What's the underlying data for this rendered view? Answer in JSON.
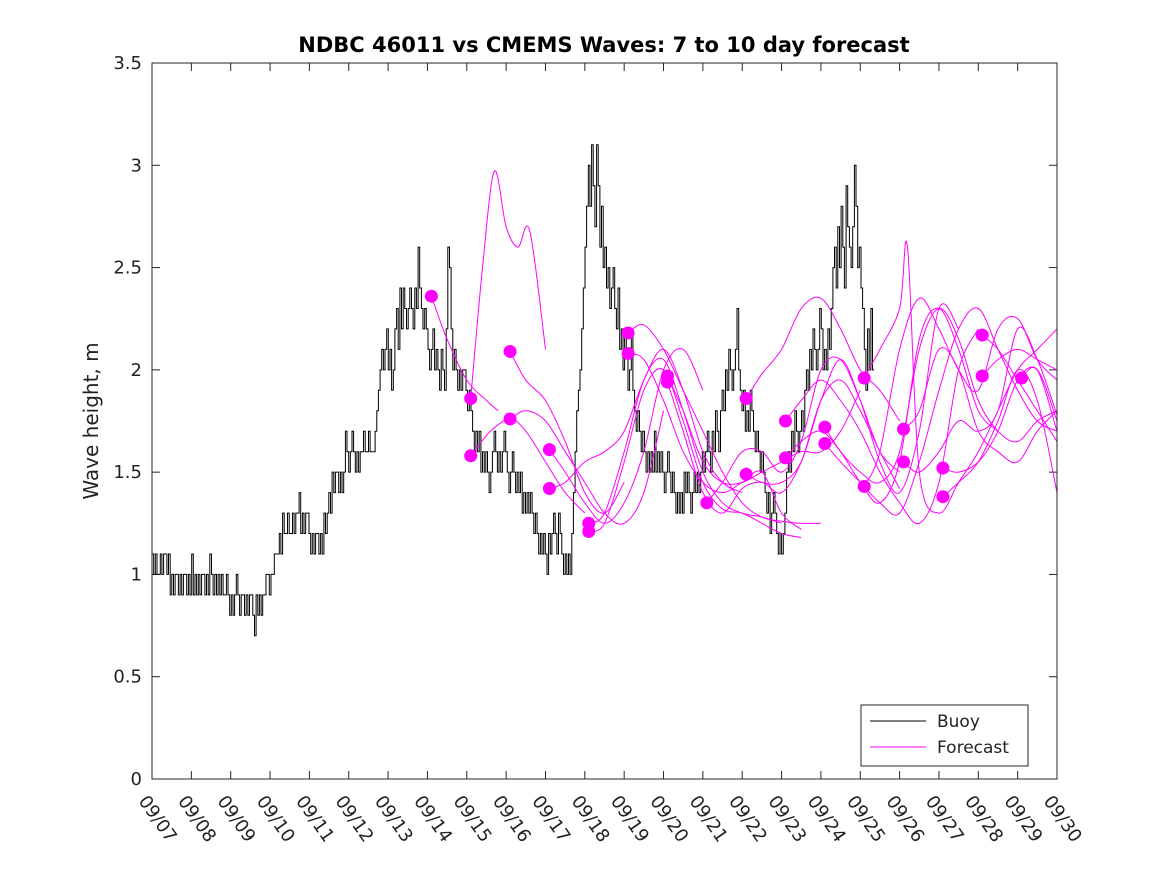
{
  "chart_data": {
    "type": "line",
    "title": "NDBC 46011 vs CMEMS Waves: 7 to 10 day forecast",
    "xlabel": "",
    "ylabel": "Wave height, m",
    "ylim": [
      0,
      3.5
    ],
    "xlim": [
      0,
      23
    ],
    "x_tick_labels": [
      "09/07",
      "09/08",
      "09/09",
      "09/10",
      "09/11",
      "09/12",
      "09/13",
      "09/14",
      "09/15",
      "09/16",
      "09/17",
      "09/18",
      "09/19",
      "09/20",
      "09/21",
      "09/22",
      "09/23",
      "09/24",
      "09/25",
      "09/26",
      "09/27",
      "09/28",
      "09/29",
      "09/30"
    ],
    "y_ticks": [
      0,
      0.5,
      1,
      1.5,
      2,
      2.5,
      3,
      3.5
    ],
    "y_tick_labels": [
      "0",
      "0.5",
      "1",
      "1.5",
      "2",
      "2.5",
      "3",
      "3.5"
    ],
    "legend": {
      "placement": "bottom-right",
      "entries": [
        "Buoy",
        "Forecast"
      ]
    },
    "colors": {
      "buoy": "#000000",
      "forecast": "#ff00ff"
    },
    "buoy_series": {
      "name": "Buoy",
      "x_start_day": 0,
      "step_days": 0.042,
      "values": [
        1.1,
        1.0,
        1.1,
        1.0,
        1.0,
        1.1,
        1.0,
        1.1,
        1.1,
        1.0,
        1.1,
        0.9,
        1.0,
        0.9,
        1.0,
        1.0,
        0.9,
        1.0,
        0.9,
        1.0,
        1.0,
        0.9,
        1.0,
        0.9,
        1.1,
        0.9,
        1.0,
        0.9,
        1.0,
        0.9,
        1.0,
        1.0,
        0.9,
        1.0,
        0.9,
        1.1,
        1.0,
        0.9,
        1.0,
        0.9,
        1.0,
        0.9,
        1.0,
        0.9,
        0.9,
        1.0,
        0.9,
        0.8,
        0.9,
        0.8,
        0.9,
        1.0,
        0.9,
        0.8,
        0.9,
        0.9,
        0.8,
        0.9,
        0.8,
        0.9,
        0.9,
        0.8,
        0.7,
        0.9,
        0.8,
        0.9,
        0.8,
        0.9,
        0.9,
        1.0,
        1.0,
        0.9,
        1.0,
        1.0,
        1.1,
        1.1,
        1.1,
        1.2,
        1.1,
        1.3,
        1.2,
        1.2,
        1.3,
        1.2,
        1.2,
        1.3,
        1.2,
        1.3,
        1.3,
        1.4,
        1.2,
        1.3,
        1.2,
        1.3,
        1.3,
        1.2,
        1.1,
        1.2,
        1.1,
        1.2,
        1.2,
        1.1,
        1.2,
        1.1,
        1.3,
        1.2,
        1.3,
        1.4,
        1.3,
        1.5,
        1.4,
        1.5,
        1.5,
        1.4,
        1.5,
        1.4,
        1.5,
        1.7,
        1.6,
        1.5,
        1.6,
        1.7,
        1.6,
        1.5,
        1.6,
        1.5,
        1.6,
        1.6,
        1.7,
        1.6,
        1.6,
        1.7,
        1.6,
        1.6,
        1.6,
        1.7,
        1.8,
        1.9,
        2.0,
        2.1,
        2.0,
        2.1,
        2.2,
        2.0,
        2.1,
        1.9,
        2.0,
        2.2,
        2.3,
        2.1,
        2.4,
        2.2,
        2.4,
        2.3,
        2.2,
        2.3,
        2.4,
        2.3,
        2.2,
        2.4,
        2.3,
        2.6,
        2.4,
        2.3,
        2.2,
        2.3,
        2.2,
        2.1,
        2.0,
        2.1,
        2.2,
        2.0,
        2.1,
        2.0,
        1.9,
        2.1,
        2.0,
        1.9,
        2.2,
        2.6,
        2.5,
        2.2,
        2.0,
        2.1,
        2.0,
        1.9,
        2.0,
        1.9,
        2.0,
        2.0,
        1.9,
        1.8,
        1.9,
        1.8,
        1.7,
        1.6,
        1.7,
        1.6,
        1.7,
        1.5,
        1.6,
        1.5,
        1.6,
        1.5,
        1.4,
        1.5,
        1.6,
        1.7,
        1.6,
        1.5,
        1.6,
        1.5,
        1.6,
        1.7,
        1.6,
        1.5,
        1.4,
        1.5,
        1.6,
        1.5,
        1.4,
        1.5,
        1.4,
        1.5,
        1.3,
        1.4,
        1.3,
        1.4,
        1.3,
        1.4,
        1.3,
        1.2,
        1.3,
        1.2,
        1.1,
        1.2,
        1.1,
        1.2,
        1.1,
        1.0,
        1.2,
        1.1,
        1.2,
        1.3,
        1.2,
        1.1,
        1.3,
        1.2,
        1.1,
        1.0,
        1.1,
        1.0,
        1.1,
        1.0,
        1.2,
        1.4,
        1.6,
        1.8,
        1.9,
        2.0,
        2.2,
        2.4,
        2.6,
        2.8,
        3.0,
        2.8,
        3.1,
        2.9,
        2.7,
        3.1,
        2.9,
        2.6,
        2.8,
        2.5,
        2.6,
        2.4,
        2.5,
        2.3,
        2.4,
        2.5,
        2.3,
        2.2,
        2.4,
        2.1,
        2.2,
        2.0,
        2.2,
        2.1,
        1.9,
        2.0,
        2.2,
        1.9,
        1.8,
        1.7,
        1.8,
        1.7,
        1.6,
        1.7,
        1.6,
        1.5,
        1.6,
        1.5,
        1.6,
        1.5,
        1.7,
        1.5,
        1.6,
        1.5,
        1.6,
        1.5,
        1.4,
        1.5,
        1.6,
        1.5,
        1.4,
        1.5,
        1.4,
        1.3,
        1.4,
        1.3,
        1.4,
        1.3,
        1.5,
        1.4,
        1.5,
        1.4,
        1.3,
        1.4,
        1.5,
        1.4,
        1.5,
        1.4,
        1.5,
        1.6,
        1.5,
        1.6,
        1.7,
        1.6,
        1.5,
        1.7,
        1.6,
        1.8,
        1.7,
        1.6,
        1.8,
        1.9,
        1.8,
        2.0,
        1.9,
        2.1,
        2.0,
        1.9,
        2.0,
        2.1,
        2.3,
        2.0,
        1.9,
        1.8,
        1.9,
        1.7,
        1.8,
        1.7,
        1.9,
        1.8,
        1.7,
        1.6,
        1.7,
        1.6,
        1.5,
        1.6,
        1.5,
        1.4,
        1.3,
        1.4,
        1.2,
        1.3,
        1.4,
        1.3,
        1.2,
        1.1,
        1.2,
        1.1,
        1.2,
        1.3,
        1.5,
        1.6,
        1.5,
        1.7,
        1.6,
        1.8,
        1.7,
        1.6,
        1.7,
        1.8,
        1.7,
        1.9,
        2.0,
        1.9,
        2.1,
        2.0,
        2.2,
        2.1,
        2.0,
        2.1,
        2.3,
        2.2,
        2.0,
        2.1,
        2.0,
        2.2,
        2.1,
        2.3,
        2.5,
        2.6,
        2.4,
        2.7,
        2.5,
        2.8,
        2.6,
        2.4,
        2.9,
        2.7,
        2.6,
        2.5,
        2.7,
        3.0,
        2.8,
        2.5,
        2.6,
        2.4,
        2.3,
        2.1,
        1.9,
        2.2,
        2.0,
        2.3,
        2.0
      ]
    },
    "forecast_series": [
      {
        "name": "Forecast 1",
        "x": [
          7.1,
          7.5,
          8.0,
          8.5,
          8.8
        ],
        "values": [
          2.36,
          2.15,
          1.95,
          1.85,
          1.8
        ]
      },
      {
        "name": "Forecast 2",
        "x": [
          8.1,
          8.4,
          8.7,
          9.0,
          9.3,
          9.6,
          10.0
        ],
        "values": [
          1.86,
          2.5,
          2.97,
          2.7,
          2.6,
          2.68,
          2.1
        ]
      },
      {
        "name": "Forecast 3",
        "x": [
          8.1,
          8.6,
          9.1,
          9.5,
          10.0,
          10.5,
          11.0
        ],
        "values": [
          1.58,
          1.7,
          1.76,
          1.7,
          1.55,
          1.4,
          1.3
        ]
      },
      {
        "name": "Forecast 4",
        "x": [
          9.1,
          9.5,
          10.0,
          10.5,
          11.0,
          11.5,
          12.0
        ],
        "values": [
          2.09,
          1.95,
          1.85,
          1.65,
          1.4,
          1.3,
          1.45
        ]
      },
      {
        "name": "Forecast 5",
        "x": [
          9.1,
          9.5,
          10.0,
          10.5,
          11.0,
          11.5,
          12.0,
          12.5,
          13.0
        ],
        "values": [
          1.76,
          1.8,
          1.75,
          1.6,
          1.45,
          1.3,
          1.25,
          1.4,
          1.8
        ]
      },
      {
        "name": "Forecast 6",
        "x": [
          10.1,
          10.5,
          11.0,
          11.5,
          12.0,
          12.5,
          13.0,
          13.5,
          14.0
        ],
        "values": [
          1.61,
          1.5,
          1.35,
          1.25,
          1.35,
          1.6,
          2.0,
          2.1,
          1.9
        ]
      },
      {
        "name": "Forecast 7",
        "x": [
          10.1,
          10.5,
          11.0,
          11.5,
          12.0,
          12.5,
          13.0,
          13.5,
          14.0,
          14.5,
          15.0
        ],
        "values": [
          1.42,
          1.45,
          1.55,
          1.6,
          1.7,
          1.95,
          2.1,
          1.9,
          1.6,
          1.45,
          1.4
        ]
      },
      {
        "name": "Forecast 8",
        "x": [
          11.1,
          11.5,
          12.0,
          12.5,
          13.0,
          13.5,
          14.0,
          14.5,
          15.0,
          15.5,
          16.0
        ],
        "values": [
          1.25,
          1.3,
          1.6,
          1.95,
          2.05,
          1.8,
          1.5,
          1.35,
          1.3,
          1.28,
          1.25
        ]
      },
      {
        "name": "Forecast 9",
        "x": [
          11.1,
          11.5,
          12.0,
          12.5,
          13.0,
          13.5,
          14.0,
          14.5,
          15.0,
          15.5,
          16.0,
          16.5
        ],
        "values": [
          1.21,
          1.25,
          1.55,
          1.9,
          2.0,
          1.75,
          1.45,
          1.32,
          1.3,
          1.25,
          1.2,
          1.18
        ]
      },
      {
        "name": "Forecast 10",
        "x": [
          12.1,
          12.5,
          13.0,
          13.5,
          14.0,
          14.5,
          15.0,
          15.5,
          16.0,
          16.5,
          17.0
        ],
        "values": [
          2.18,
          2.22,
          2.1,
          1.9,
          1.7,
          1.5,
          1.35,
          1.28,
          1.26,
          1.25,
          1.25
        ]
      },
      {
        "name": "Forecast 11",
        "x": [
          12.1,
          12.5,
          13.0,
          13.5,
          14.0,
          14.5,
          15.0,
          15.5,
          16.0,
          16.5
        ],
        "values": [
          2.08,
          2.05,
          1.85,
          1.6,
          1.45,
          1.4,
          1.45,
          1.5,
          1.3,
          1.22
        ]
      },
      {
        "name": "Forecast 12",
        "x": [
          13.1,
          13.5,
          14.0,
          14.5,
          15.0,
          15.5,
          16.0,
          16.5,
          17.0,
          17.5,
          18.0
        ],
        "values": [
          1.97,
          1.8,
          1.55,
          1.45,
          1.45,
          1.5,
          1.55,
          1.6,
          1.6,
          1.7,
          1.9
        ]
      },
      {
        "name": "Forecast 13",
        "x": [
          13.1,
          13.5,
          14.0,
          14.5,
          15.0,
          15.5,
          16.0,
          16.5,
          17.0,
          17.5,
          18.0,
          18.5,
          19.0
        ],
        "values": [
          1.94,
          1.7,
          1.4,
          1.3,
          1.42,
          1.45,
          1.4,
          1.55,
          1.85,
          1.95,
          1.8,
          1.6,
          1.42
        ]
      },
      {
        "name": "Forecast 14",
        "x": [
          14.1,
          14.5,
          15.0,
          15.5,
          16.0,
          16.5,
          17.0,
          17.5,
          18.0,
          18.5,
          19.0
        ],
        "values": [
          1.35,
          1.45,
          1.6,
          1.6,
          1.5,
          1.65,
          2.0,
          2.05,
          1.85,
          1.6,
          1.5
        ]
      },
      {
        "name": "Forecast 15",
        "x": [
          15.1,
          15.5,
          16.0,
          16.5,
          17.0,
          17.5,
          18.0,
          18.5,
          19.0
        ],
        "values": [
          1.86,
          1.98,
          2.1,
          2.3,
          2.35,
          2.2,
          2.0,
          1.9,
          1.75
        ]
      },
      {
        "name": "Forecast 16",
        "x": [
          15.1,
          15.5,
          16.0,
          16.5,
          17.0,
          17.5,
          18.0,
          18.5,
          19.0,
          19.5,
          20.0,
          20.5
        ],
        "values": [
          1.49,
          1.45,
          1.45,
          1.55,
          1.85,
          2.05,
          1.85,
          1.55,
          1.4,
          1.7,
          2.3,
          2.2
        ]
      },
      {
        "name": "Forecast 17",
        "x": [
          16.1,
          16.5,
          17.0,
          17.5,
          18.0,
          18.5,
          19.0,
          19.5,
          20.0,
          20.5,
          21.0
        ],
        "values": [
          1.75,
          1.85,
          1.95,
          1.85,
          1.7,
          1.5,
          1.35,
          1.25,
          1.45,
          2.0,
          2.2
        ]
      },
      {
        "name": "Forecast 18",
        "x": [
          16.1,
          16.5,
          17.0,
          17.5,
          18.0,
          18.5,
          19.0,
          19.5,
          20.0,
          20.5,
          21.0,
          21.5
        ],
        "values": [
          1.57,
          1.65,
          1.7,
          1.6,
          1.45,
          1.35,
          1.55,
          2.15,
          2.3,
          2.1,
          1.8,
          1.7
        ]
      },
      {
        "name": "Forecast 19",
        "x": [
          17.1,
          17.5,
          18.0,
          18.5,
          19.0,
          19.5,
          20.0,
          20.5,
          21.0,
          21.5,
          22.0,
          22.5,
          23.0
        ],
        "values": [
          1.72,
          1.6,
          1.5,
          1.45,
          1.6,
          2.1,
          2.3,
          2.15,
          1.85,
          1.7,
          1.65,
          1.75,
          1.8
        ]
      },
      {
        "name": "Forecast 20",
        "x": [
          17.1,
          17.5,
          18.0,
          18.5,
          19.0,
          19.5,
          20.0,
          20.5,
          21.0,
          21.5,
          22.0,
          22.5,
          23.0
        ],
        "values": [
          1.64,
          1.55,
          1.45,
          1.35,
          1.3,
          1.55,
          1.9,
          2.2,
          2.3,
          2.1,
          1.9,
          1.75,
          1.7
        ]
      },
      {
        "name": "Forecast 21",
        "x": [
          18.1,
          18.5,
          19.0,
          19.2,
          19.5,
          20.0,
          20.5,
          21.0,
          21.5,
          22.0,
          22.5,
          23.0
        ],
        "values": [
          1.96,
          2.1,
          2.3,
          2.6,
          1.5,
          1.3,
          1.45,
          1.6,
          1.8,
          2.0,
          2.1,
          2.2
        ]
      },
      {
        "name": "Forecast 22",
        "x": [
          18.1,
          18.5,
          19.0,
          19.5,
          20.0,
          20.5,
          21.0,
          21.5,
          22.0,
          22.5,
          23.0
        ],
        "values": [
          1.43,
          1.6,
          2.1,
          2.35,
          2.2,
          2.0,
          1.9,
          2.2,
          2.25,
          2.05,
          1.95
        ]
      },
      {
        "name": "Forecast 23",
        "x": [
          19.1,
          19.5,
          20.0,
          20.5,
          21.0,
          21.5,
          22.0,
          22.5,
          23.0
        ],
        "values": [
          1.71,
          1.8,
          2.1,
          2.0,
          1.7,
          1.6,
          1.55,
          1.7,
          1.8
        ]
      },
      {
        "name": "Forecast 24",
        "x": [
          19.1,
          19.5,
          20.0,
          20.5,
          21.0,
          21.5,
          22.0,
          22.5,
          23.0
        ],
        "values": [
          1.55,
          1.5,
          1.6,
          1.75,
          1.7,
          1.8,
          2.2,
          2.05,
          1.78
        ]
      },
      {
        "name": "Forecast 25",
        "x": [
          20.1,
          20.5,
          21.0,
          21.5,
          22.0,
          22.5,
          23.0
        ],
        "values": [
          1.52,
          1.5,
          1.55,
          1.7,
          1.95,
          2.0,
          1.75
        ]
      },
      {
        "name": "Forecast 26",
        "x": [
          20.1,
          20.5,
          21.0,
          21.5,
          22.0,
          22.5,
          23.0
        ],
        "values": [
          1.38,
          1.45,
          1.55,
          1.75,
          2.0,
          1.85,
          1.4
        ]
      },
      {
        "name": "Forecast 27",
        "x": [
          21.1,
          21.5,
          22.0,
          22.5,
          23.0
        ],
        "values": [
          2.17,
          2.1,
          1.95,
          1.8,
          1.65
        ]
      },
      {
        "name": "Forecast 28",
        "x": [
          21.1,
          21.5,
          22.0,
          22.5,
          23.0
        ],
        "values": [
          1.97,
          2.05,
          2.1,
          2.05,
          2.0
        ]
      },
      {
        "name": "Forecast 29",
        "x": [
          22.1,
          22.5,
          23.0
        ],
        "values": [
          1.96,
          2.0,
          1.7
        ]
      }
    ]
  }
}
